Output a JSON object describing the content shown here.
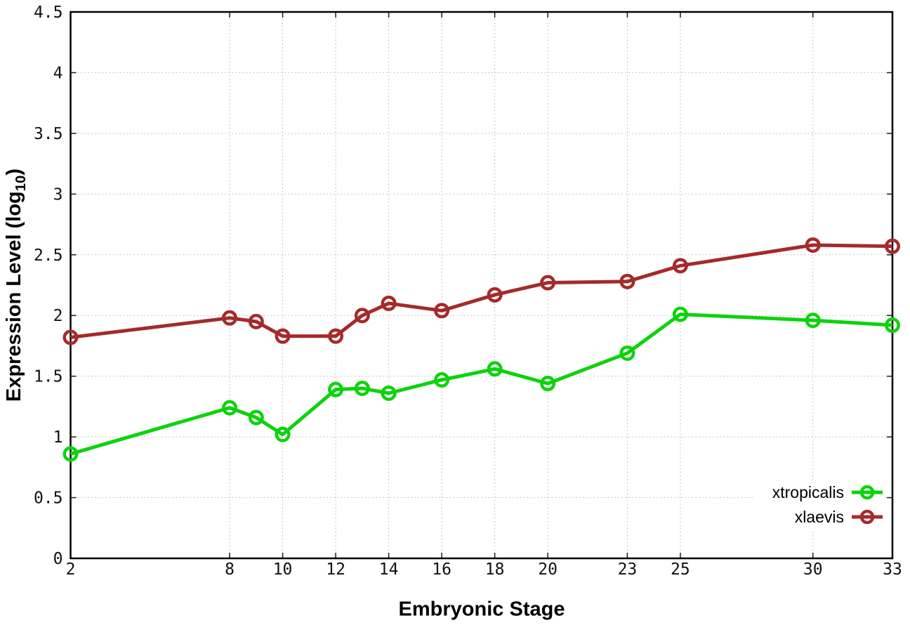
{
  "chart_data": {
    "type": "line",
    "title": "",
    "xlabel": "Embryonic Stage",
    "ylabel": "Expression Level (log10)",
    "ylabel_prefix": "Expression Level (log",
    "ylabel_sub": "10",
    "ylabel_suffix": ")",
    "x": [
      2,
      8,
      9,
      10,
      12,
      13,
      14,
      16,
      18,
      20,
      23,
      25,
      30,
      33
    ],
    "x_ticks": [
      2,
      8,
      10,
      12,
      14,
      16,
      18,
      20,
      23,
      25,
      30,
      33
    ],
    "y_ticks": [
      0,
      0.5,
      1,
      1.5,
      2,
      2.5,
      3,
      3.5,
      4,
      4.5
    ],
    "xlim": [
      2,
      33
    ],
    "ylim": [
      0,
      4.5
    ],
    "grid": true,
    "grid_style": "dotted",
    "grid_color": "#b5b5b5",
    "axis_color": "#000000",
    "background_color": "#ffffff",
    "marker": "open-circle",
    "line_width": 5,
    "legend_position": "bottom-right",
    "series": [
      {
        "name": "xtropicalis",
        "color": "#0cd30c",
        "values": [
          0.86,
          1.24,
          1.16,
          1.02,
          1.39,
          1.4,
          1.36,
          1.47,
          1.56,
          1.44,
          1.69,
          2.01,
          1.96,
          1.92
        ]
      },
      {
        "name": "xlaevis",
        "color": "#a52a2a",
        "values": [
          1.82,
          1.98,
          1.95,
          1.83,
          1.83,
          2.0,
          2.1,
          2.04,
          2.17,
          2.27,
          2.28,
          2.41,
          2.58,
          2.57
        ]
      }
    ]
  }
}
